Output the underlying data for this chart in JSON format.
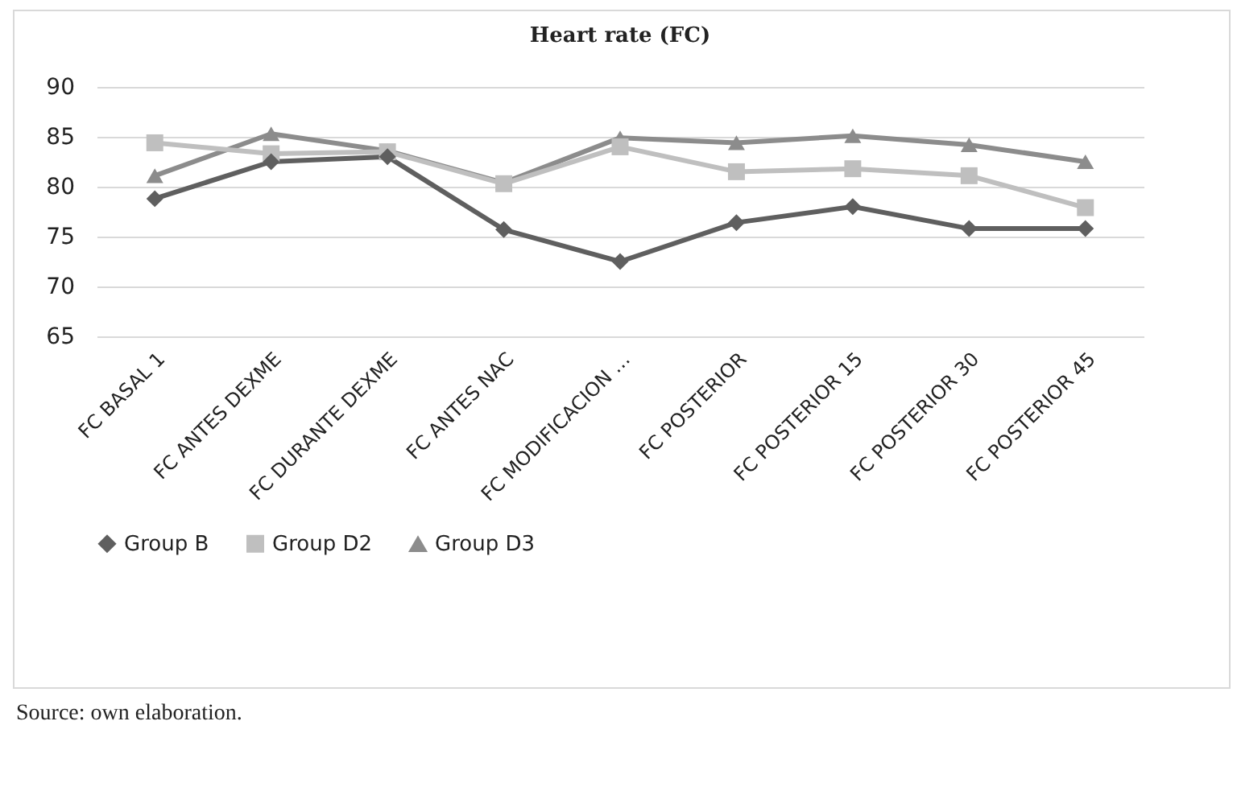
{
  "chart_data": {
    "type": "line",
    "title": "Heart rate (FC)",
    "categories": [
      "FC BASAL 1",
      "FC ANTES DEXME",
      "FC DURANTE DEXME",
      "FC ANTES NAC",
      "FC MODIFICACION …",
      "FC POSTERIOR",
      "FC POSTERIOR 15",
      "FC POSTERIOR 30",
      "FC POSTERIOR 45"
    ],
    "series": [
      {
        "name": "Group B",
        "color": "#5f5f5f",
        "marker": "diamond",
        "values": [
          78.8,
          82.5,
          83.0,
          75.7,
          72.5,
          76.4,
          78.0,
          75.8,
          75.8
        ]
      },
      {
        "name": "Group D2",
        "color": "#bfbfbf",
        "marker": "square",
        "values": [
          84.4,
          83.3,
          83.5,
          80.3,
          84.0,
          81.5,
          81.8,
          81.1,
          77.9
        ]
      },
      {
        "name": "Group D3",
        "color": "#8c8c8c",
        "marker": "triangle",
        "values": [
          81.1,
          85.3,
          83.6,
          80.4,
          84.9,
          84.4,
          85.1,
          84.2,
          82.5
        ]
      }
    ],
    "ylim": [
      65,
      90
    ],
    "yticks": [
      65,
      70,
      75,
      80,
      85,
      90
    ],
    "grid": "y",
    "legend": "bottom",
    "annotations": [
      "Source: own elaboration."
    ]
  }
}
